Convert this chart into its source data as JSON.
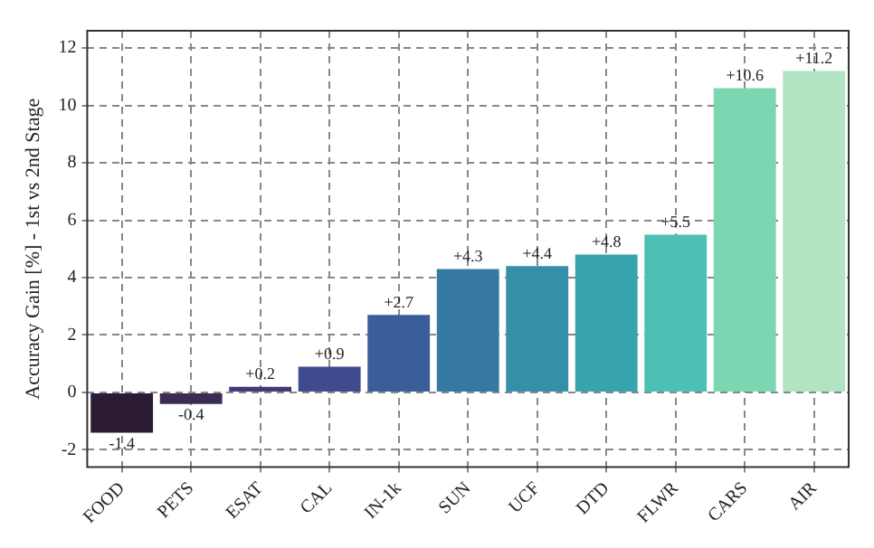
{
  "chart_data": {
    "type": "bar",
    "ylabel": "Accuracy Gain [%] - 1st vs 2nd Stage",
    "categories": [
      "FOOD",
      "PETS",
      "ESAT",
      "CAL",
      "IN-1k",
      "SUN",
      "UCF",
      "DTD",
      "FLWR",
      "CARS",
      "AIR"
    ],
    "values": [
      -1.4,
      -0.4,
      0.2,
      0.9,
      2.7,
      4.3,
      4.4,
      4.8,
      5.5,
      10.6,
      11.2
    ],
    "value_labels": [
      "-1.4",
      "-0.4",
      "+0.2",
      "+0.9",
      "+2.7",
      "+4.3",
      "+4.4",
      "+4.8",
      "+5.5",
      "+10.6",
      "+11.2"
    ],
    "colors": [
      "#2b1c33",
      "#3b2c55",
      "#403b7a",
      "#3f4b8c",
      "#3a5e98",
      "#3579a2",
      "#348fa8",
      "#37a3ac",
      "#4cc0b4",
      "#7dd6b2",
      "#b0e4c3"
    ],
    "ylim": [
      -2.6,
      12.6
    ],
    "yticks": [
      -2,
      0,
      2,
      4,
      6,
      8,
      10,
      12
    ],
    "grid": true
  }
}
